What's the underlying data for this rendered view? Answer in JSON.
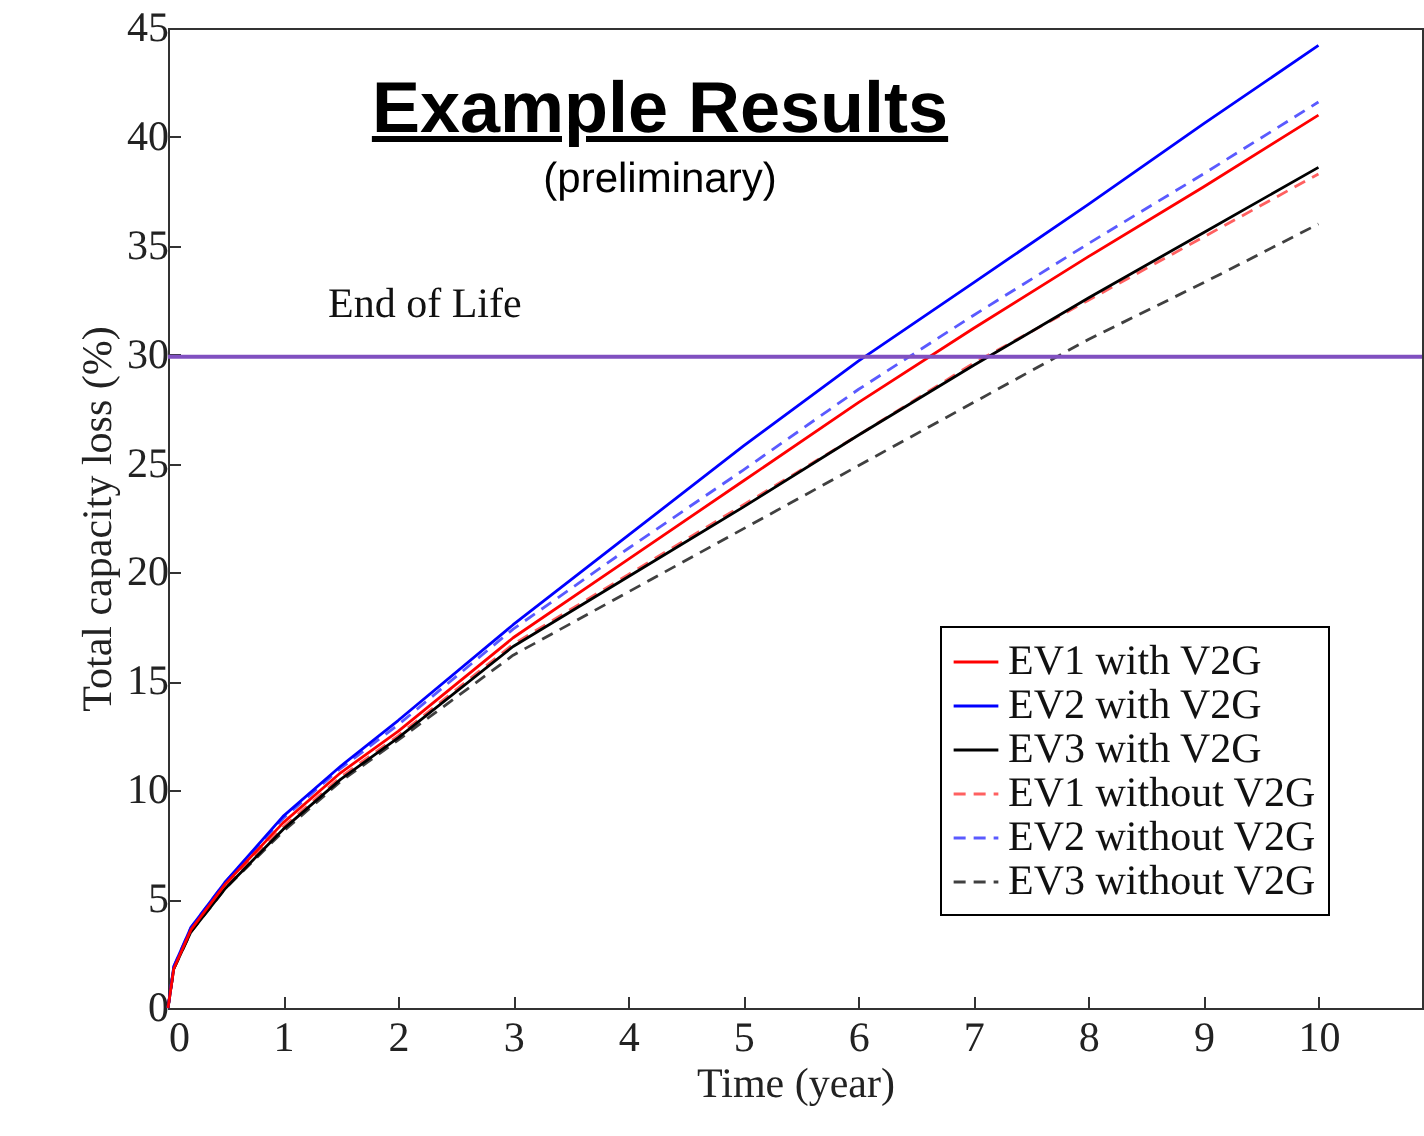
{
  "chart_data": {
    "type": "line",
    "title": "Example Results",
    "subtitle": "(preliminary)",
    "xlabel": "Time (year)",
    "ylabel": "Total capacity loss (%)",
    "x": [
      0,
      0.05,
      0.2,
      0.5,
      1,
      1.5,
      2,
      3,
      4,
      5,
      6,
      7,
      8,
      9,
      10
    ],
    "series": [
      {
        "name": "EV1 with V2G",
        "color": "#ff0000",
        "line_style": "solid",
        "values": [
          0,
          1.8,
          3.6,
          5.7,
          8.5,
          10.8,
          12.7,
          17.0,
          20.6,
          24.2,
          27.8,
          31.2,
          34.5,
          37.7,
          41.0
        ]
      },
      {
        "name": "EV2 with V2G",
        "color": "#0000ff",
        "line_style": "solid",
        "values": [
          0,
          1.9,
          3.7,
          5.8,
          8.8,
          11.1,
          13.2,
          17.6,
          21.7,
          25.8,
          29.7,
          33.3,
          36.9,
          40.6,
          44.2
        ]
      },
      {
        "name": "EV3 with V2G",
        "color": "#000000",
        "line_style": "solid",
        "values": [
          0,
          1.8,
          3.5,
          5.5,
          8.2,
          10.5,
          12.4,
          16.6,
          19.8,
          23.0,
          26.3,
          29.5,
          32.6,
          35.6,
          38.6
        ]
      },
      {
        "name": "EV1 without V2G",
        "color": "#ff6060",
        "line_style": "dashed",
        "values": [
          0,
          1.8,
          3.6,
          5.6,
          8.3,
          10.6,
          12.5,
          16.7,
          19.9,
          23.1,
          26.3,
          29.6,
          32.5,
          35.4,
          38.3
        ]
      },
      {
        "name": "EV2 without V2G",
        "color": "#5a5aff",
        "line_style": "dashed",
        "values": [
          0,
          1.9,
          3.7,
          5.8,
          8.7,
          11.0,
          13.0,
          17.4,
          21.1,
          24.7,
          28.4,
          31.8,
          35.1,
          38.3,
          41.6
        ]
      },
      {
        "name": "EV3 without V2G",
        "color": "#404040",
        "line_style": "dashed",
        "values": [
          0,
          1.8,
          3.5,
          5.5,
          8.1,
          10.4,
          12.3,
          16.2,
          19.1,
          22.0,
          24.9,
          27.8,
          30.7,
          33.3,
          36.0
        ]
      }
    ],
    "xlim": [
      0,
      10.9
    ],
    "xticks": [
      0,
      1,
      2,
      3,
      4,
      5,
      6,
      7,
      8,
      9,
      10
    ],
    "ylim": [
      0,
      45
    ],
    "yticks": [
      0,
      5,
      10,
      15,
      20,
      25,
      30,
      35,
      40,
      45
    ],
    "ref_lines": [
      {
        "axis": "y",
        "value": 29.9,
        "label": "End of Life",
        "color": "#8050c0"
      }
    ],
    "grid": false,
    "legend": "bottom right"
  }
}
